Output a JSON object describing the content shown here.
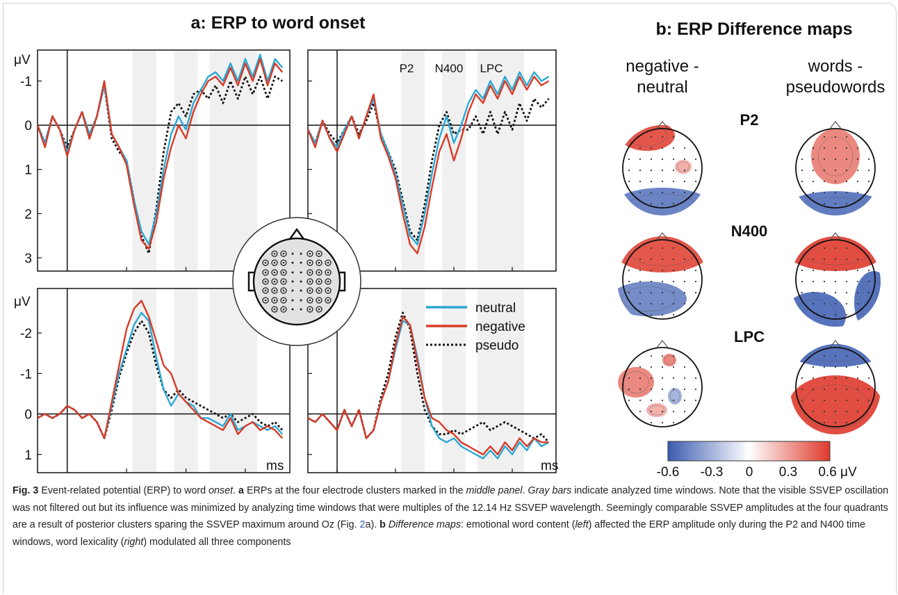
{
  "panel_a": {
    "title": "a: ERP to word onset",
    "y_unit": "μV",
    "x_unit": "ms",
    "window_labels": [
      "P2",
      "N400",
      "LPC"
    ],
    "legend": [
      {
        "label": "neutral",
        "color": "#29a8d6",
        "dash": false
      },
      {
        "label": "negative",
        "color": "#d93a26",
        "dash": false
      },
      {
        "label": "pseudo",
        "color": "#111111",
        "dash": true
      }
    ]
  },
  "panel_b": {
    "title": "b: ERP Difference maps",
    "col1": [
      "negative -",
      "neutral"
    ],
    "col2": [
      "words -",
      "pseudowords"
    ],
    "rows": [
      "P2",
      "N400",
      "LPC"
    ],
    "colorbar_ticks": [
      "-0.6",
      "-0.3",
      "0",
      "0.3",
      "0.6 μV"
    ],
    "colorbar_colors": [
      "#3a5bb0",
      "#ffffff",
      "#de3a2c"
    ]
  },
  "chart_data": [
    {
      "type": "line",
      "name": "top-left",
      "x": [
        -100,
        -75,
        -50,
        -25,
        0,
        25,
        50,
        75,
        100,
        125,
        150,
        175,
        200,
        225,
        250,
        275,
        300,
        325,
        350,
        375,
        400,
        425,
        450,
        475,
        500,
        525,
        550,
        575,
        600,
        625,
        650,
        675,
        700,
        725
      ],
      "series": [
        {
          "name": "neutral",
          "values": [
            0.0,
            0.4,
            -0.2,
            0.1,
            0.6,
            0.1,
            -0.3,
            0.2,
            -0.2,
            -0.9,
            0.2,
            0.5,
            0.8,
            1.7,
            2.4,
            2.7,
            2.0,
            1.0,
            0.2,
            -0.2,
            0.1,
            -0.5,
            -0.8,
            -1.1,
            -1.2,
            -1.0,
            -1.4,
            -1.0,
            -1.5,
            -1.1,
            -1.6,
            -1.0,
            -1.5,
            -1.3
          ]
        },
        {
          "name": "negative",
          "values": [
            0.0,
            0.5,
            -0.2,
            0.1,
            0.7,
            0.1,
            -0.3,
            0.3,
            -0.2,
            -1.0,
            0.2,
            0.5,
            0.9,
            1.8,
            2.6,
            2.8,
            2.2,
            1.2,
            0.5,
            0.0,
            0.3,
            -0.3,
            -0.7,
            -1.0,
            -1.1,
            -0.9,
            -1.3,
            -0.9,
            -1.4,
            -1.0,
            -1.5,
            -0.9,
            -1.4,
            -1.2
          ]
        },
        {
          "name": "pseudo",
          "values": [
            0.0,
            0.4,
            -0.2,
            0.1,
            0.5,
            0.1,
            -0.3,
            0.3,
            -0.2,
            -0.9,
            0.3,
            0.6,
            0.8,
            1.7,
            2.5,
            2.9,
            1.9,
            0.6,
            -0.3,
            -0.5,
            -0.2,
            -0.7,
            -0.8,
            -0.6,
            -0.9,
            -0.5,
            -1.0,
            -0.6,
            -1.1,
            -0.7,
            -1.1,
            -0.6,
            -1.1,
            -1.0
          ]
        }
      ],
      "xlim": [
        -100,
        750
      ],
      "ylim": [
        3.3,
        -1.7
      ],
      "y_ticks": [
        -1,
        0,
        1,
        2,
        3
      ],
      "x_ticks": [
        0,
        200,
        400,
        600
      ]
    },
    {
      "type": "line",
      "name": "top-right",
      "x": [
        -100,
        -75,
        -50,
        -25,
        0,
        25,
        50,
        75,
        100,
        125,
        150,
        175,
        200,
        225,
        250,
        275,
        300,
        325,
        350,
        375,
        400,
        425,
        450,
        475,
        500,
        525,
        550,
        575,
        600,
        625,
        650,
        675,
        700,
        725
      ],
      "series": [
        {
          "name": "neutral",
          "values": [
            0.1,
            0.4,
            -0.1,
            0.3,
            0.5,
            0.1,
            -0.2,
            0.3,
            -0.2,
            -0.6,
            0.2,
            0.6,
            1.1,
            1.8,
            2.5,
            2.7,
            2.0,
            1.1,
            0.3,
            -0.2,
            0.4,
            0.0,
            -0.5,
            -0.8,
            -0.6,
            -1.0,
            -0.7,
            -1.1,
            -0.8,
            -1.2,
            -0.9,
            -1.2,
            -1.0,
            -1.1
          ]
        },
        {
          "name": "negative",
          "values": [
            0.1,
            0.5,
            -0.1,
            0.3,
            0.6,
            0.2,
            -0.2,
            0.3,
            -0.2,
            -0.7,
            0.3,
            0.7,
            1.2,
            2.0,
            2.7,
            2.9,
            2.3,
            1.4,
            0.6,
            0.2,
            0.8,
            0.3,
            -0.3,
            -0.7,
            -0.5,
            -0.9,
            -0.6,
            -1.0,
            -0.7,
            -1.1,
            -0.8,
            -1.1,
            -0.9,
            -1.0
          ]
        },
        {
          "name": "pseudo",
          "values": [
            0.1,
            0.4,
            -0.1,
            0.2,
            0.4,
            0.1,
            -0.2,
            0.2,
            -0.1,
            -0.5,
            0.2,
            0.6,
            1.0,
            1.7,
            2.4,
            2.6,
            1.8,
            0.8,
            0.0,
            -0.3,
            0.2,
            0.1,
            0.1,
            -0.2,
            0.2,
            -0.3,
            0.2,
            -0.3,
            0.1,
            -0.5,
            -0.1,
            -0.6,
            -0.4,
            -0.6
          ]
        }
      ],
      "xlim": [
        -100,
        750
      ],
      "ylim": [
        3.3,
        -1.7
      ],
      "y_ticks": [
        -1,
        0,
        1,
        2,
        3
      ],
      "x_ticks": [
        0,
        200,
        400,
        600
      ]
    },
    {
      "type": "line",
      "name": "bottom-left",
      "x": [
        -100,
        -75,
        -50,
        -25,
        0,
        25,
        50,
        75,
        100,
        125,
        150,
        175,
        200,
        225,
        250,
        275,
        300,
        325,
        350,
        375,
        400,
        425,
        450,
        475,
        500,
        525,
        550,
        575,
        600,
        625,
        650,
        675,
        700,
        725
      ],
      "series": [
        {
          "name": "neutral",
          "values": [
            0.1,
            0.0,
            0.1,
            0.0,
            -0.2,
            -0.1,
            0.1,
            0.0,
            0.2,
            0.6,
            -0.2,
            -1.0,
            -1.6,
            -2.2,
            -2.5,
            -2.3,
            -1.4,
            -0.6,
            -0.2,
            -0.5,
            -0.3,
            -0.2,
            0.1,
            0.1,
            0.2,
            0.3,
            0.0,
            0.4,
            0.3,
            0.2,
            0.3,
            0.4,
            0.3,
            0.5
          ]
        },
        {
          "name": "negative",
          "values": [
            0.1,
            0.0,
            0.1,
            0.0,
            -0.2,
            -0.1,
            0.1,
            0.0,
            0.2,
            0.6,
            -0.3,
            -1.2,
            -2.1,
            -2.6,
            -2.8,
            -2.4,
            -1.8,
            -1.2,
            -1.0,
            -0.5,
            -0.3,
            -0.1,
            0.1,
            0.2,
            0.3,
            0.4,
            0.1,
            0.5,
            0.3,
            0.2,
            0.4,
            0.3,
            0.4,
            0.6
          ]
        },
        {
          "name": "pseudo",
          "values": [
            0.1,
            0.0,
            0.1,
            0.0,
            -0.2,
            -0.1,
            0.1,
            0.0,
            0.2,
            0.6,
            -0.1,
            -0.9,
            -1.5,
            -2.0,
            -2.3,
            -2.0,
            -1.2,
            -0.6,
            -0.4,
            -0.6,
            -0.4,
            -0.3,
            -0.2,
            -0.1,
            0.0,
            0.1,
            0.0,
            0.2,
            0.1,
            0.0,
            0.2,
            0.3,
            0.2,
            0.4
          ]
        }
      ],
      "xlim": [
        -100,
        750
      ],
      "ylim": [
        1.45,
        -3.1
      ],
      "y_ticks": [
        -2,
        -1,
        0,
        1
      ],
      "x_ticks": [
        0,
        200,
        400,
        600
      ]
    },
    {
      "type": "line",
      "name": "bottom-right",
      "x": [
        -100,
        -75,
        -50,
        -25,
        0,
        25,
        50,
        75,
        100,
        125,
        150,
        175,
        200,
        225,
        250,
        275,
        300,
        325,
        350,
        375,
        400,
        425,
        450,
        475,
        500,
        525,
        550,
        575,
        600,
        625,
        650,
        675,
        700,
        725
      ],
      "series": [
        {
          "name": "neutral",
          "values": [
            0.1,
            0.2,
            0.0,
            0.2,
            0.4,
            -0.1,
            0.3,
            -0.1,
            0.6,
            0.4,
            -0.3,
            -0.8,
            -1.6,
            -2.3,
            -2.2,
            -1.4,
            -0.4,
            0.3,
            0.6,
            0.7,
            0.6,
            0.8,
            0.9,
            1.0,
            1.1,
            0.9,
            1.1,
            0.8,
            1.0,
            0.7,
            0.9,
            0.6,
            0.8,
            0.7
          ]
        },
        {
          "name": "negative",
          "values": [
            0.1,
            0.2,
            0.0,
            0.2,
            0.4,
            -0.1,
            0.3,
            -0.1,
            0.6,
            0.4,
            -0.3,
            -0.8,
            -1.7,
            -2.4,
            -2.2,
            -1.3,
            -0.4,
            0.1,
            0.2,
            0.4,
            0.5,
            0.7,
            0.8,
            0.9,
            1.0,
            0.8,
            1.0,
            0.7,
            0.9,
            0.6,
            0.8,
            0.6,
            0.7,
            0.7
          ]
        },
        {
          "name": "pseudo",
          "values": [
            0.1,
            0.2,
            0.0,
            0.2,
            0.4,
            -0.1,
            0.3,
            -0.1,
            0.6,
            0.4,
            -0.4,
            -1.0,
            -1.9,
            -2.5,
            -2.1,
            -1.0,
            -0.1,
            0.3,
            0.5,
            0.5,
            0.4,
            0.5,
            0.4,
            0.3,
            0.2,
            0.4,
            0.3,
            0.2,
            0.3,
            0.4,
            0.5,
            0.6,
            0.5,
            0.7
          ]
        }
      ],
      "xlim": [
        -100,
        750
      ],
      "ylim": [
        1.45,
        -3.1
      ],
      "y_ticks": [
        -2,
        -1,
        0,
        1
      ],
      "x_ticks": [
        0,
        200,
        400,
        600
      ]
    }
  ],
  "caption": {
    "label": "Fig. 3",
    "t1": "  Event-related potential (ERP) to word ",
    "i1": "onset",
    "t2": ". ",
    "b1": "a",
    "t3": " ERPs at the four electrode clusters marked in the ",
    "i2": "middle panel",
    "t4": ". ",
    "i3": "Gray bars",
    "t5": " indicate analyzed time windows. Note that the visible SSVEP oscillation was not filtered out but its influence was minimized by analyzing time windows that were multiples of the 12.14 Hz SSVEP wavelength. Seemingly comparable SSVEP amplitudes at the four quadrants are a result of posterior clusters sparing the SSVEP maximum around Oz (Fig. ",
    "ref": "2",
    "t6": "a). ",
    "b2": "b",
    "t7": " ",
    "i4": "Difference maps",
    "t8": ": emotional word content (",
    "i5": "left",
    "t9": ") affected the ERP amplitude only during the P2 and N400 time windows, word lexicality (",
    "i6": "right",
    "t10": ") modulated all three components"
  }
}
